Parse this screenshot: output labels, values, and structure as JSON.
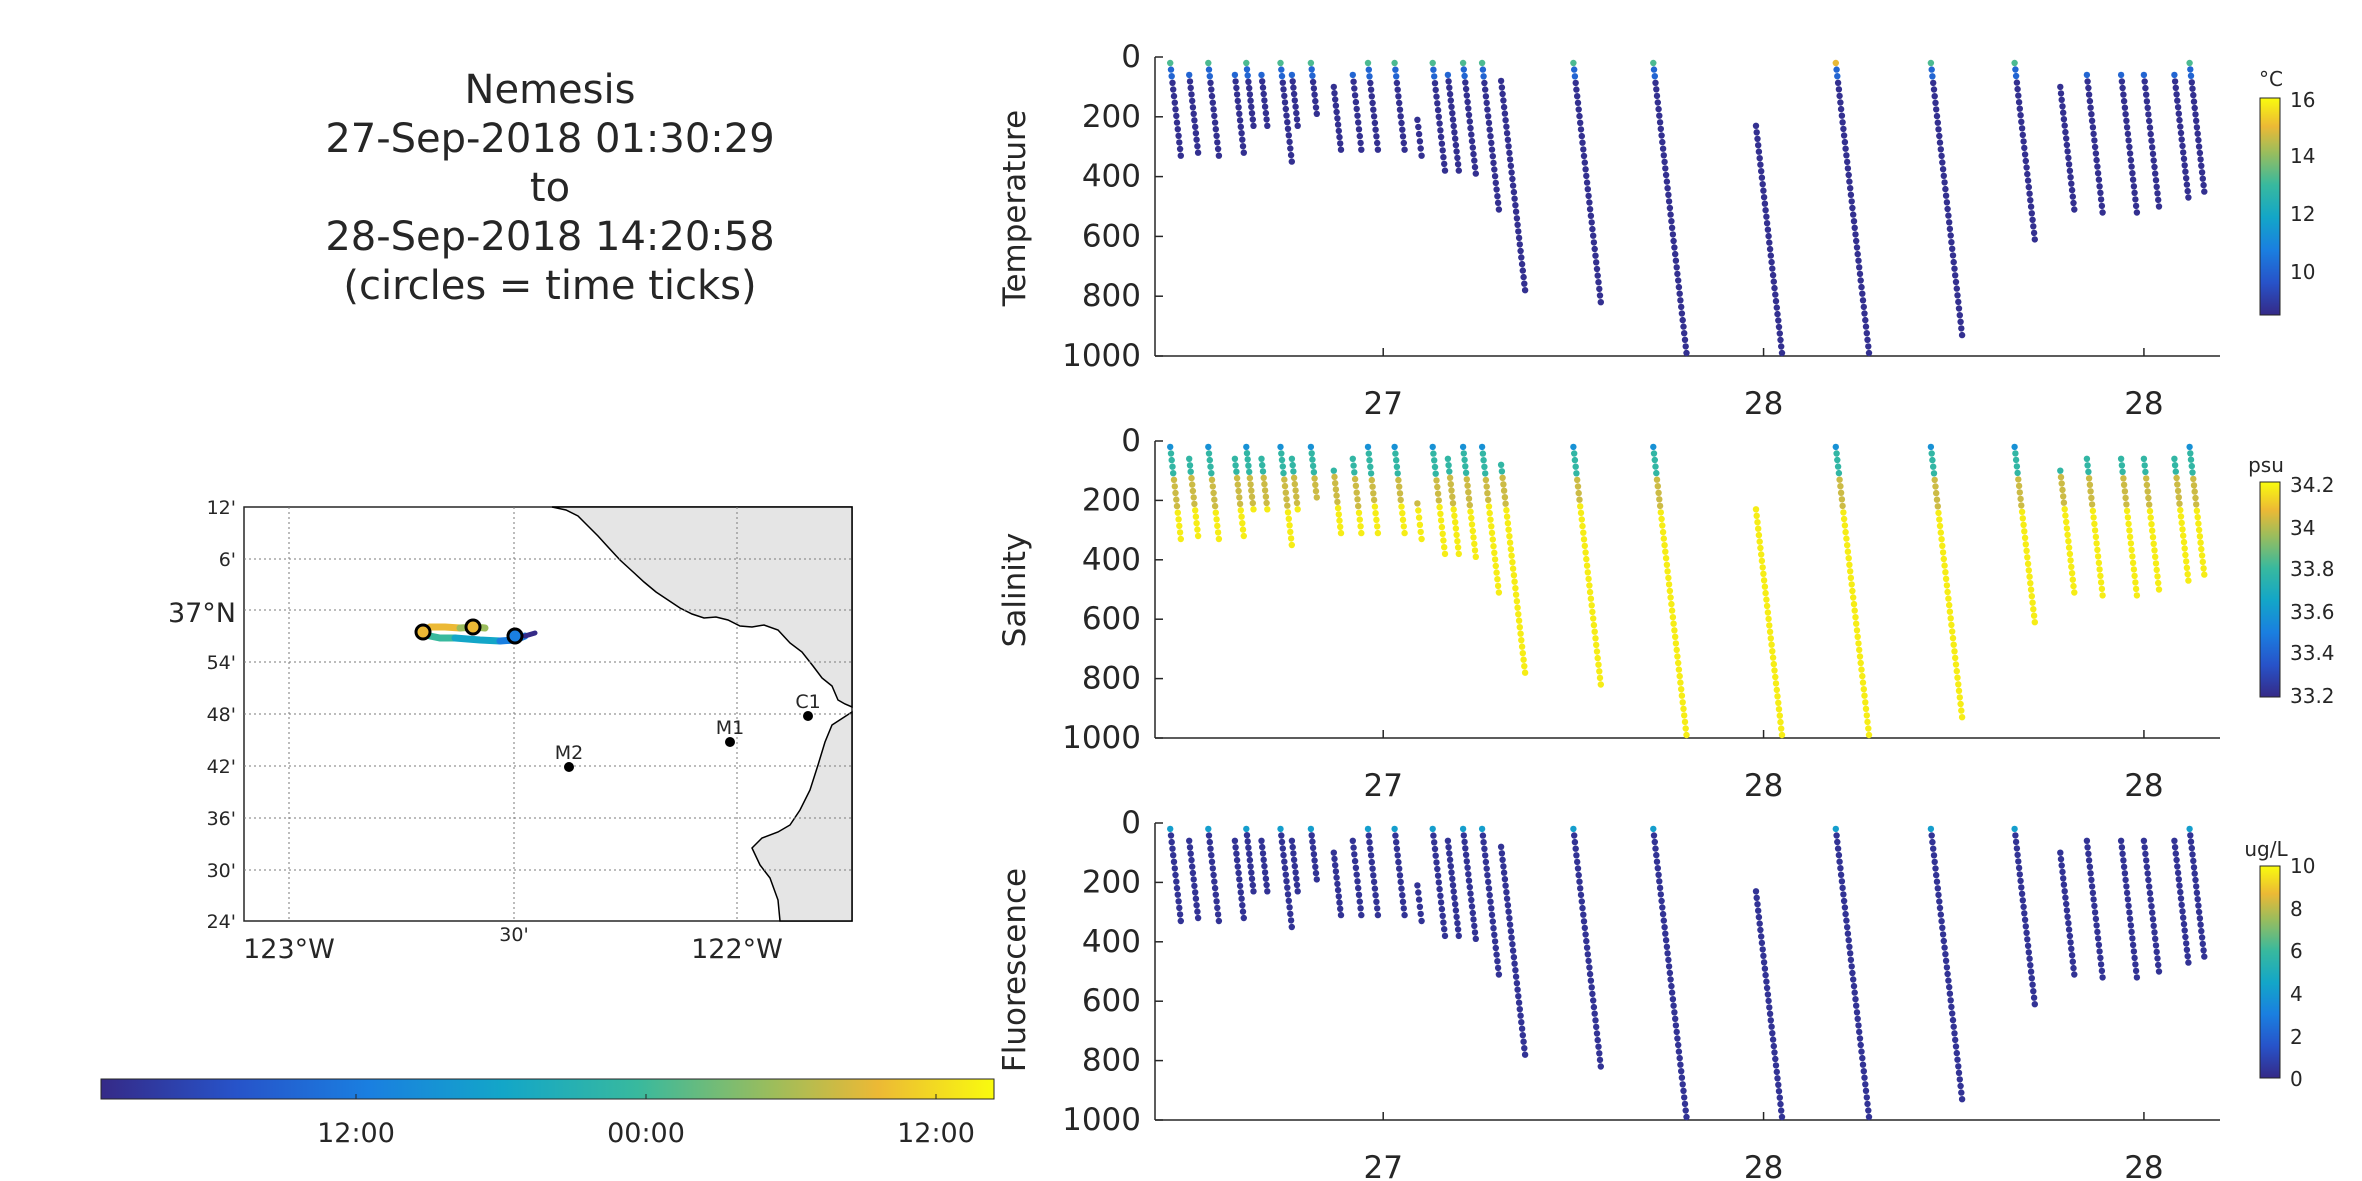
{
  "title": {
    "line1": "Nemesis",
    "line2": "27-Sep-2018 01:30:29",
    "line3": "to",
    "line4": "28-Sep-2018 14:20:58",
    "line5": "(circles = time ticks)"
  },
  "chart_data": [
    {
      "type": "map",
      "lat_ticks": [
        "12'",
        "6'",
        "37°N",
        "54'",
        "48'",
        "42'",
        "36'",
        "30'",
        "24'"
      ],
      "lon_ticks": [
        "123°W",
        "30'",
        "122°W"
      ],
      "stations": [
        {
          "name": "C1",
          "lon": -121.84,
          "lat": 36.8
        },
        {
          "name": "M1",
          "lon": -122.02,
          "lat": 36.75
        },
        {
          "name": "M2",
          "lon": -122.38,
          "lat": 36.7
        }
      ],
      "track_color_scale": {
        "ticks": [
          "12:00",
          "00:00",
          "12:00"
        ],
        "colormap": "parula"
      },
      "time_tick_circles": 3
    },
    {
      "type": "scatter",
      "ylabel": "Temperature",
      "yticks": [
        "0",
        "200",
        "400",
        "600",
        "800",
        "1000"
      ],
      "xticks": [
        "27",
        "28",
        "28"
      ],
      "ylim": [
        0,
        1000
      ],
      "y_reversed": true,
      "colorbar": {
        "unit": "°C",
        "ticks": [
          "16",
          "14",
          "12",
          "10"
        ],
        "range": [
          8.5,
          16
        ]
      },
      "colormap": "parula"
    },
    {
      "type": "scatter",
      "ylabel": "Salinity",
      "yticks": [
        "0",
        "200",
        "400",
        "600",
        "800",
        "1000"
      ],
      "xticks": [
        "27",
        "28",
        "28"
      ],
      "ylim": [
        0,
        1000
      ],
      "y_reversed": true,
      "colorbar": {
        "unit": "psu",
        "ticks": [
          "34.2",
          "34",
          "33.8",
          "33.6",
          "33.4",
          "33.2"
        ],
        "range": [
          33.2,
          34.2
        ]
      },
      "colormap": "parula"
    },
    {
      "type": "scatter",
      "ylabel": "Fluorescence",
      "yticks": [
        "0",
        "200",
        "400",
        "600",
        "800",
        "1000"
      ],
      "xticks": [
        "27",
        "28",
        "28"
      ],
      "ylim": [
        0,
        1000
      ],
      "y_reversed": true,
      "colorbar": {
        "unit": "ug/L",
        "ticks": [
          "10",
          "8",
          "6",
          "4",
          "2",
          "0"
        ],
        "range": [
          0,
          10
        ]
      },
      "colormap": "parula"
    }
  ],
  "profiles": [
    {
      "t": 0.02,
      "d": [
        20,
        330
      ]
    },
    {
      "t": 0.045,
      "d": [
        60,
        320
      ]
    },
    {
      "t": 0.07,
      "d": [
        20,
        330
      ]
    },
    {
      "t": 0.105,
      "d": [
        60,
        320
      ]
    },
    {
      "t": 0.12,
      "d": [
        20,
        230
      ]
    },
    {
      "t": 0.14,
      "d": [
        60,
        230
      ]
    },
    {
      "t": 0.165,
      "d": [
        20,
        350
      ]
    },
    {
      "t": 0.18,
      "d": [
        60,
        230
      ]
    },
    {
      "t": 0.205,
      "d": [
        20,
        190
      ]
    },
    {
      "t": 0.235,
      "d": [
        100,
        310
      ]
    },
    {
      "t": 0.26,
      "d": [
        60,
        310
      ]
    },
    {
      "t": 0.28,
      "d": [
        20,
        310
      ]
    },
    {
      "t": 0.315,
      "d": [
        20,
        310
      ]
    },
    {
      "t": 0.345,
      "d": [
        210,
        330
      ]
    },
    {
      "t": 0.365,
      "d": [
        20,
        380
      ]
    },
    {
      "t": 0.385,
      "d": [
        60,
        380
      ]
    },
    {
      "t": 0.405,
      "d": [
        20,
        390
      ]
    },
    {
      "t": 0.43,
      "d": [
        20,
        510
      ]
    },
    {
      "t": 0.455,
      "d": [
        80,
        780
      ]
    },
    {
      "t": 0.55,
      "d": [
        20,
        820
      ]
    },
    {
      "t": 0.655,
      "d": [
        20,
        990
      ]
    },
    {
      "t": 0.79,
      "d": [
        230,
        990
      ]
    },
    {
      "t": 0.895,
      "d": [
        20,
        990
      ]
    },
    {
      "t": 1.02,
      "d": [
        20,
        930
      ]
    },
    {
      "t": 1.13,
      "d": [
        20,
        610
      ]
    },
    {
      "t": 1.19,
      "d": [
        100,
        510
      ]
    },
    {
      "t": 1.225,
      "d": [
        60,
        520
      ]
    },
    {
      "t": 1.27,
      "d": [
        60,
        520
      ]
    },
    {
      "t": 1.3,
      "d": [
        60,
        500
      ]
    },
    {
      "t": 1.34,
      "d": [
        60,
        470
      ]
    },
    {
      "t": 1.36,
      "d": [
        20,
        450
      ]
    }
  ]
}
